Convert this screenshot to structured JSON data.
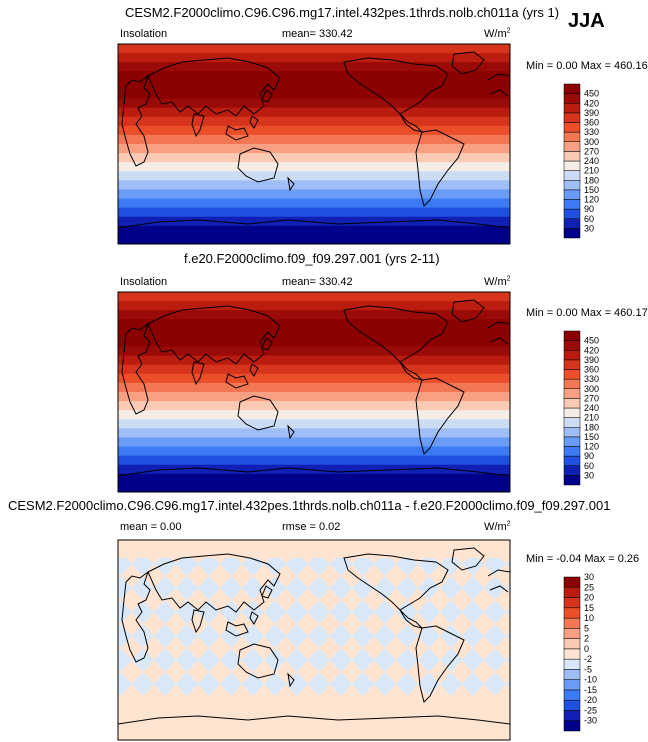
{
  "season": "JJA",
  "colors": {
    "abs": [
      "#00008b",
      "#1020b4",
      "#2050e0",
      "#3d7af5",
      "#6a9cf7",
      "#9fbef5",
      "#cddcf5",
      "#f5ece6",
      "#fbcab5",
      "#f8a083",
      "#f37752",
      "#ec4e2a",
      "#d6341b",
      "#ba1d10",
      "#9a0a06",
      "#8b0000"
    ],
    "diff": [
      "#00008b",
      "#1020b4",
      "#2050e0",
      "#3d7af5",
      "#6a9cf7",
      "#9fbef5",
      "#d8e8f8",
      "#ffe4d2",
      "#fbcab5",
      "#f8a083",
      "#f37752",
      "#ec4e2a",
      "#d6341b",
      "#ba1d10",
      "#8b0000"
    ]
  },
  "panels": [
    {
      "title": "CESM2.F2000climo.C96.C96.mg17.intel.432pes.1thrds.nolb.ch011a (yrs 1)",
      "left_label": "Insolation",
      "center_label": "mean=  330.42",
      "units": "W/m",
      "units_sup": "2",
      "minmax": "Min =   0.00 Max = 460.16",
      "levels": [
        "30",
        "60",
        "90",
        "120",
        "150",
        "180",
        "210",
        "240",
        "270",
        "300",
        "330",
        "360",
        "390",
        "420",
        "450"
      ]
    },
    {
      "title": "f.e20.F2000climo.f09_f09.297.001 (yrs 2-11)",
      "left_label": "Insolation",
      "center_label": "mean=  330.42",
      "units": "W/m",
      "units_sup": "2",
      "minmax": "Min =   0.00 Max = 460.17",
      "levels": [
        "30",
        "60",
        "90",
        "120",
        "150",
        "180",
        "210",
        "240",
        "270",
        "300",
        "330",
        "360",
        "390",
        "420",
        "450"
      ]
    },
    {
      "title": "CESM2.F2000climo.C96.C96.mg17.intel.432pes.1thrds.nolb.ch011a - f.e20.F2000climo.f09_f09.297.001",
      "left_label": "mean =   0.00",
      "center_label": "rmse =   0.02",
      "units": "W/m",
      "units_sup": "2",
      "minmax": "Min =  -0.04 Max =   0.26",
      "levels": [
        "-30",
        "-25",
        "-20",
        "-15",
        "-10",
        "-5",
        "-2",
        "0",
        "2",
        "5",
        "10",
        "15",
        "20",
        "25",
        "30"
      ]
    }
  ]
}
